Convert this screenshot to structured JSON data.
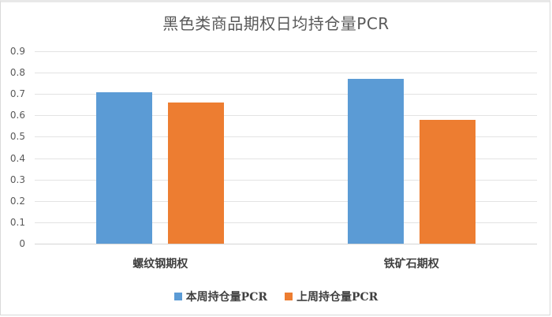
{
  "chart_data": {
    "type": "bar",
    "title": "黑色类商品期权日均持仓量PCR",
    "xlabel": "",
    "ylabel": "",
    "categories": [
      "螺纹钢期权",
      "铁矿石期权"
    ],
    "series": [
      {
        "name": "本周持仓量PCR",
        "color": "#5b9bd5",
        "values": [
          0.71,
          0.77
        ]
      },
      {
        "name": "上周持仓量PCR",
        "color": "#ed7d31",
        "values": [
          0.66,
          0.58
        ]
      }
    ],
    "ylim": [
      0,
      0.9
    ],
    "yticks": [
      "0",
      "0.1",
      "0.2",
      "0.3",
      "0.4",
      "0.5",
      "0.6",
      "0.7",
      "0.8",
      "0.9"
    ],
    "grid": true,
    "legend_position": "bottom"
  }
}
